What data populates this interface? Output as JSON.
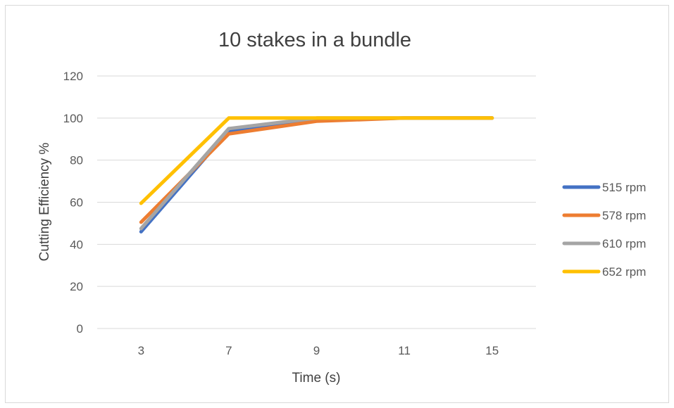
{
  "chart_data": {
    "type": "line",
    "title": "10 stakes in a bundle",
    "xlabel": "Time (s)",
    "ylabel": "Cutting Efficiency %",
    "categories": [
      "3",
      "7",
      "9",
      "11",
      "15"
    ],
    "ylim": [
      0,
      120
    ],
    "yticks": [
      0,
      20,
      40,
      60,
      80,
      100,
      120
    ],
    "grid": true,
    "legend_position": "right",
    "series": [
      {
        "name": "515 rpm",
        "color": "#4472c4",
        "values": [
          46,
          94,
          99,
          100,
          100
        ]
      },
      {
        "name": "578 rpm",
        "color": "#ed7d31",
        "values": [
          50.5,
          92.5,
          98.5,
          100,
          100
        ]
      },
      {
        "name": "610 rpm",
        "color": "#a5a5a5",
        "values": [
          47.5,
          95,
          100,
          100,
          100
        ]
      },
      {
        "name": "652 rpm",
        "color": "#ffc000",
        "values": [
          59.5,
          100,
          100,
          100,
          100
        ]
      }
    ]
  }
}
